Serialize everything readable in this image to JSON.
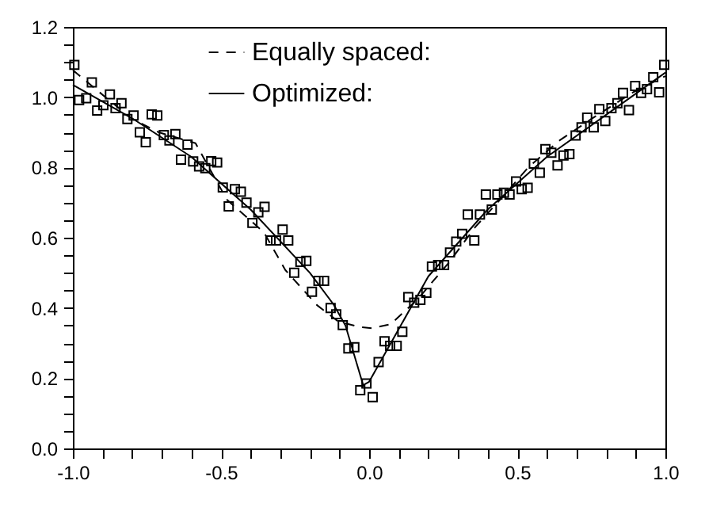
{
  "chart_data": {
    "type": "scatter",
    "legend": "top",
    "grid": false,
    "xlim": [
      -1,
      1
    ],
    "ylim": [
      0,
      1.2
    ],
    "xticks": [
      {
        "value": -1,
        "label": "-1.0"
      },
      {
        "value": -0.9,
        "label": null
      },
      {
        "value": -0.8,
        "label": null
      },
      {
        "value": -0.7,
        "label": null
      },
      {
        "value": -0.6,
        "label": null
      },
      -0.5,
      {
        "value": -0.4,
        "label": null
      },
      {
        "value": -0.3,
        "label": null
      },
      {
        "value": -0.2,
        "label": null
      },
      {
        "value": -0.1,
        "label": null
      },
      {
        "value": 0,
        "label": "0.0"
      },
      {
        "value": 0.1,
        "label": null
      },
      {
        "value": 0.2,
        "label": null
      },
      {
        "value": 0.3,
        "label": null
      },
      {
        "value": 0.4,
        "label": null
      },
      0.5,
      {
        "value": 0.6,
        "label": null
      },
      {
        "value": 0.7,
        "label": null
      },
      {
        "value": 0.8,
        "label": null
      },
      {
        "value": 0.9,
        "label": null
      },
      {
        "value": 1,
        "label": "1.0"
      }
    ],
    "yticks": [
      {
        "value": 0,
        "label": "0.0"
      },
      {
        "value": 0.05,
        "label": null
      },
      {
        "value": 0.1,
        "label": null
      },
      {
        "value": 0.15,
        "label": null
      },
      0.2,
      {
        "value": 0.25,
        "label": null
      },
      {
        "value": 0.3,
        "label": null
      },
      {
        "value": 0.35,
        "label": null
      },
      0.4,
      {
        "value": 0.45,
        "label": null
      },
      {
        "value": 0.5,
        "label": null
      },
      {
        "value": 0.55,
        "label": null
      },
      0.6,
      {
        "value": 0.65,
        "label": null
      },
      {
        "value": 0.7,
        "label": null
      },
      {
        "value": 0.75,
        "label": null
      },
      0.8,
      {
        "value": 0.85,
        "label": null
      },
      {
        "value": 0.9,
        "label": null
      },
      {
        "value": 0.95,
        "label": null
      },
      {
        "value": 1,
        "label": "1.0"
      },
      {
        "value": 1.05,
        "label": null
      },
      {
        "value": 1.1,
        "label": null
      },
      {
        "value": 1.15,
        "label": null
      },
      1.2
    ],
    "series": [
      {
        "marker": "square",
        "color": "#000000",
        "x": [
          -0.995,
          -0.979,
          -0.955,
          -0.936,
          -0.918,
          -0.897,
          -0.875,
          -0.856,
          -0.836,
          -0.816,
          -0.795,
          -0.774,
          -0.754,
          -0.734,
          -0.715,
          -0.693,
          -0.674,
          -0.654,
          -0.635,
          -0.613,
          -0.594,
          -0.574,
          -0.553,
          -0.533,
          -0.513,
          -0.494,
          -0.474,
          -0.453,
          -0.433,
          -0.414,
          -0.394,
          -0.374,
          -0.353,
          -0.333,
          -0.314,
          -0.292,
          -0.273,
          -0.253,
          -0.232,
          -0.212,
          -0.193,
          -0.171,
          -0.152,
          -0.13,
          -0.111,
          -0.089,
          -0.07,
          -0.05,
          -0.03,
          -0.009,
          0.012,
          0.032,
          0.052,
          0.071,
          0.093,
          0.112,
          0.132,
          0.152,
          0.173,
          0.193,
          0.212,
          0.233,
          0.253,
          0.273,
          0.294,
          0.314,
          0.333,
          0.355,
          0.374,
          0.394,
          0.414,
          0.433,
          0.455,
          0.474,
          0.496,
          0.515,
          0.535,
          0.556,
          0.576,
          0.595,
          0.615,
          0.636,
          0.656,
          0.676,
          0.697,
          0.717,
          0.736,
          0.758,
          0.777,
          0.797,
          0.818,
          0.838,
          0.857,
          0.877,
          0.898,
          0.918,
          0.938,
          0.959,
          0.979,
          0.996
        ],
        "values": [
          1.092,
          0.992,
          0.997,
          1.042,
          0.962,
          0.977,
          1.008,
          0.969,
          0.983,
          0.938,
          0.948,
          0.9,
          0.872,
          0.951,
          0.948,
          0.892,
          0.877,
          0.895,
          0.822,
          0.865,
          0.817,
          0.803,
          0.798,
          0.818,
          0.814,
          0.743,
          0.689,
          0.738,
          0.731,
          0.7,
          0.642,
          0.672,
          0.688,
          0.592,
          0.592,
          0.623,
          0.592,
          0.5,
          0.531,
          0.534,
          0.446,
          0.477,
          0.477,
          0.4,
          0.382,
          0.351,
          0.285,
          0.288,
          0.166,
          0.185,
          0.146,
          0.246,
          0.305,
          0.292,
          0.292,
          0.332,
          0.431,
          0.415,
          0.423,
          0.443,
          0.518,
          0.522,
          0.522,
          0.558,
          0.589,
          0.611,
          0.666,
          0.592,
          0.666,
          0.723,
          0.68,
          0.723,
          0.728,
          0.723,
          0.76,
          0.738,
          0.742,
          0.811,
          0.785,
          0.852,
          0.842,
          0.806,
          0.834,
          0.838,
          0.891,
          0.914,
          0.942,
          0.914,
          0.966,
          0.932,
          0.969,
          0.983,
          1.012,
          0.963,
          1.032,
          1.012,
          1.023,
          1.057,
          1.014,
          1.092
        ]
      },
      {
        "type": "line",
        "name": "Equally spaced:",
        "color": "#000000",
        "line_style": "dashed",
        "x": [
          -1,
          -0.89,
          -0.8,
          -0.71,
          -0.586,
          -0.48,
          -0.355,
          -0.283,
          -0.176,
          -0.105,
          -0.034,
          0.01,
          0.073,
          0.162,
          0.27,
          0.358,
          0.465,
          0.537,
          0.643,
          0.75,
          0.893,
          1
        ],
        "values": [
          1.077,
          1.0,
          0.938,
          0.9,
          0.869,
          0.708,
          0.615,
          0.508,
          0.408,
          0.362,
          0.346,
          0.342,
          0.354,
          0.423,
          0.53,
          0.63,
          0.73,
          0.8,
          0.877,
          0.938,
          1.015,
          1.06
        ]
      },
      {
        "type": "line",
        "name": "Optimized:",
        "color": "#000000",
        "line_style": "solid",
        "x": [
          -1,
          -0.8,
          -0.6,
          -0.4,
          -0.2,
          -0.12,
          -0.08,
          -0.02,
          0,
          0.1,
          0.2,
          0.4,
          0.6,
          0.8,
          1
        ],
        "values": [
          1.035,
          0.94,
          0.83,
          0.68,
          0.5,
          0.41,
          0.35,
          0.18,
          0.19,
          0.34,
          0.49,
          0.68,
          0.83,
          0.95,
          1.07
        ]
      }
    ]
  }
}
